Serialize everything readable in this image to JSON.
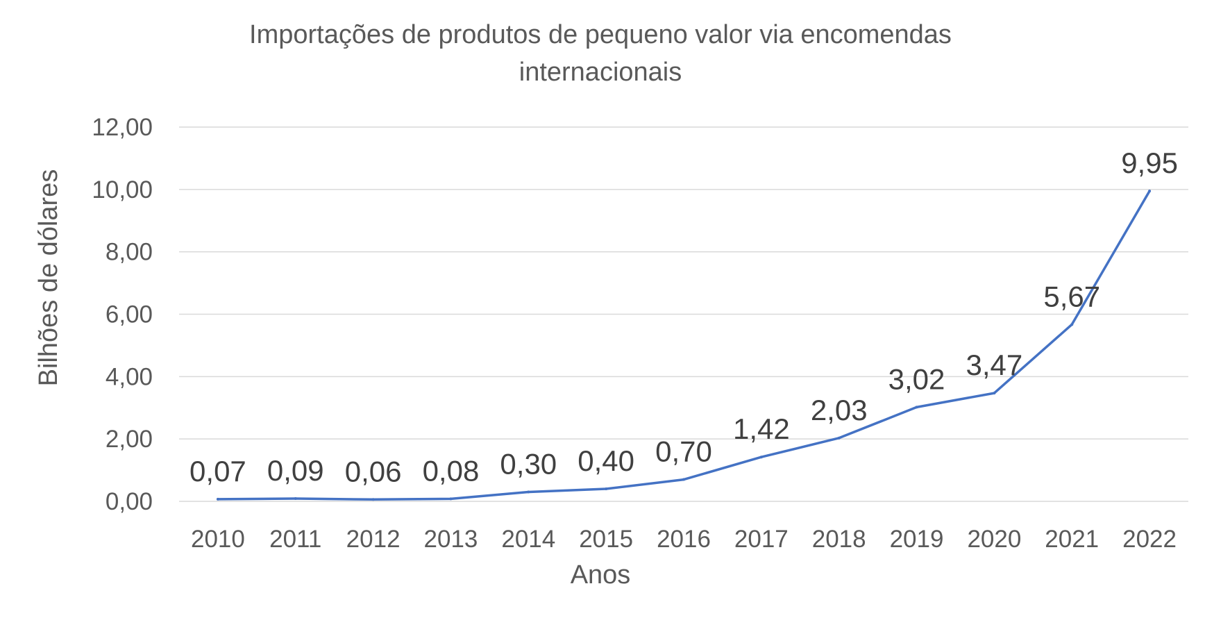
{
  "chart_data": {
    "type": "line",
    "title_lines": [
      "Importações de produtos de  pequeno valor via encomendas",
      "internacionais"
    ],
    "xlabel": "Anos",
    "ylabel": "Bilhões de dólares",
    "categories": [
      "2010",
      "2011",
      "2012",
      "2013",
      "2014",
      "2015",
      "2016",
      "2017",
      "2018",
      "2019",
      "2020",
      "2021",
      "2022"
    ],
    "series": [
      {
        "name": "Importações",
        "values": [
          0.07,
          0.09,
          0.06,
          0.08,
          0.3,
          0.4,
          0.7,
          1.42,
          2.03,
          3.02,
          3.47,
          5.67,
          9.95
        ],
        "labels": [
          "0,07",
          "0,09",
          "0,06",
          "0,08",
          "0,30",
          "0,40",
          "0,70",
          "1,42",
          "2,03",
          "3,02",
          "3,47",
          "5,67",
          "9,95"
        ],
        "color": "#4472c4"
      }
    ],
    "ylim": [
      0,
      12
    ],
    "yticks": [
      0,
      2,
      4,
      6,
      8,
      10,
      12
    ],
    "ytick_labels": [
      "0,00",
      "2,00",
      "4,00",
      "6,00",
      "8,00",
      "10,00",
      "12,00"
    ],
    "grid": true,
    "legend": "none"
  }
}
